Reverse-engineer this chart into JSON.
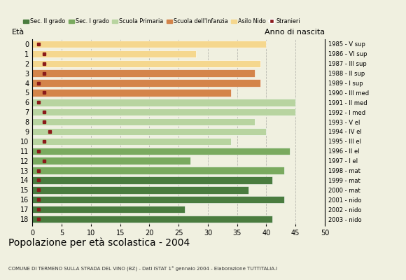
{
  "ages": [
    18,
    17,
    16,
    15,
    14,
    13,
    12,
    11,
    10,
    9,
    8,
    7,
    6,
    5,
    4,
    3,
    2,
    1,
    0
  ],
  "bar_values": [
    41,
    26,
    43,
    37,
    41,
    43,
    27,
    44,
    34,
    40,
    38,
    45,
    45,
    34,
    39,
    38,
    39,
    28,
    40
  ],
  "stranieri": [
    1,
    1,
    1,
    1,
    1,
    1,
    2,
    1,
    2,
    3,
    2,
    2,
    1,
    2,
    1,
    2,
    2,
    2,
    1
  ],
  "right_labels": [
    "1985 - V sup",
    "1986 - VI sup",
    "1987 - III sup",
    "1988 - II sup",
    "1989 - I sup",
    "1990 - III med",
    "1991 - II med",
    "1992 - I med",
    "1993 - V el",
    "1994 - IV el",
    "1995 - III el",
    "1996 - II el",
    "1997 - I el",
    "1998 - mat",
    "1999 - mat",
    "2000 - mat",
    "2001 - nido",
    "2002 - nido",
    "2003 - nido"
  ],
  "colors": {
    "sec2": "#4a7c3f",
    "sec1": "#7aaa5f",
    "primaria": "#b8d4a0",
    "infanzia": "#d4844a",
    "nido": "#f5d78e",
    "stranieri": "#8b1a1a"
  },
  "legend_labels": [
    "Sec. II grado",
    "Sec. I grado",
    "Scuola Primaria",
    "Scuola dell'Infanzia",
    "Asilo Nido",
    "Stranieri"
  ],
  "title": "Popolazione per età scolastica - 2004",
  "subtitle": "COMUNE DI TERMENO SULLA STRADA DEL VINO (BZ) - Dati ISTAT 1° gennaio 2004 - Elaborazione TUTTITALIA.I",
  "ylabel_left": "Età",
  "ylabel_right": "Anno di nascita",
  "xlim": [
    0,
    50
  ],
  "xticks": [
    0,
    5,
    10,
    15,
    20,
    25,
    30,
    35,
    40,
    45,
    50
  ],
  "background_color": "#f0f0e0"
}
